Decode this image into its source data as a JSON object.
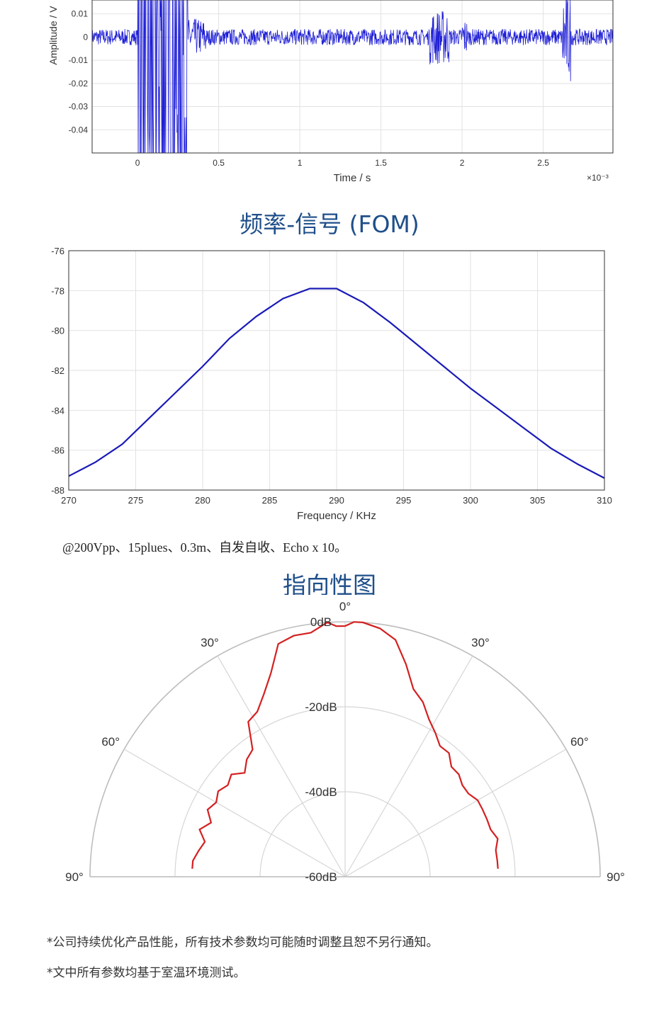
{
  "time_chart": {
    "ylabel": "Amplitude / V",
    "xlabel": "Time / s",
    "x_multiplier": "×10⁻³",
    "y_ticks": [
      "0.01",
      "0",
      "-0.01",
      "-0.02",
      "-0.03",
      "-0.04"
    ],
    "x_ticks": [
      "0",
      "0.5",
      "1",
      "1.5",
      "2",
      "2.5"
    ],
    "line_color": "#1f1fd6"
  },
  "fom_chart_title": "频率-信号 (FOM)",
  "directivity_title": "指向性图",
  "condition_text": "@200Vpp、15plues、0.3m、自发自收、Echo x 10。",
  "notes": [
    "*公司持续优化产品性能，所有技术参数均可能随时调整且恕不另行通知。",
    "*文中所有参数均基于室温环境测试。"
  ],
  "chart_data": [
    {
      "type": "line",
      "xlabel": "Time / s",
      "ylabel": "Amplitude / V",
      "x_scale_note": "×10⁻³",
      "xlim": [
        -0.28,
        2.93
      ],
      "ylim": [
        -0.05,
        0.016
      ],
      "x_ticks": [
        0,
        0.5,
        1,
        1.5,
        2,
        2.5
      ],
      "y_ticks": [
        0.01,
        0,
        -0.01,
        -0.02,
        -0.03,
        -0.04
      ],
      "series": [
        {
          "description_points": [
            {
              "x": -0.28,
              "y": 0.0
            },
            {
              "x": 0.0,
              "y": 0.0
            },
            {
              "x": 0.01,
              "y": -0.05
            },
            {
              "x": 0.3,
              "y": 0.016
            },
            {
              "x": 0.35,
              "y": 0.003
            },
            {
              "x": 1.85,
              "y": 0.013
            },
            {
              "x": 1.87,
              "y": -0.013
            },
            {
              "x": 2.64,
              "y": 0.015
            },
            {
              "x": 2.64,
              "y": -0.022
            },
            {
              "x": 2.93,
              "y": 0.0
            }
          ]
        }
      ],
      "grid": true
    },
    {
      "type": "line",
      "title": "频率-信号 (FOM)",
      "xlabel": "Frequency / KHz",
      "ylabel": "",
      "xlim": [
        270,
        310
      ],
      "ylim": [
        -88,
        -76
      ],
      "x_ticks": [
        270,
        275,
        280,
        285,
        290,
        295,
        300,
        305,
        310
      ],
      "y_ticks": [
        -76,
        -78,
        -80,
        -82,
        -84,
        -86,
        -88
      ],
      "series": [
        {
          "x": [
            270,
            272,
            274,
            276,
            278,
            280,
            282,
            284,
            286,
            288,
            290,
            292,
            294,
            296,
            298,
            300,
            302,
            304,
            306,
            308,
            310
          ],
          "y": [
            -87.3,
            -86.6,
            -85.7,
            -84.4,
            -83.1,
            -81.8,
            -80.4,
            -79.3,
            -78.4,
            -77.9,
            -77.9,
            -78.6,
            -79.6,
            -80.7,
            -81.8,
            -82.9,
            -83.9,
            -84.9,
            -85.9,
            -86.7,
            -87.4
          ],
          "color": "#1a1ab8"
        }
      ],
      "grid": true
    },
    {
      "type": "polar",
      "title": "指向性图",
      "theta_range_deg": [
        -90,
        90
      ],
      "r_range_db": [
        -60,
        0
      ],
      "angle_labels": [
        "90°",
        "60°",
        "30°",
        "0°",
        "30°",
        "60°",
        "90°"
      ],
      "radius_labels": [
        "0dB",
        "-20dB",
        "-40dB",
        "-60dB"
      ],
      "series": [
        {
          "color": "#d42020",
          "theta_deg": [
            -87,
            -84,
            -80,
            -76,
            -72,
            -68,
            -64,
            -60,
            -56,
            -52,
            -48,
            -44,
            -40,
            -36,
            -32,
            -28,
            -24,
            -20,
            -16,
            -12,
            -8,
            -4,
            -2,
            0,
            2,
            4,
            8,
            12,
            16,
            20,
            24,
            28,
            32,
            36,
            40,
            44,
            48,
            52,
            56,
            60,
            64,
            68,
            72,
            76,
            80,
            84,
            87
          ],
          "r_db": [
            -24,
            -24,
            -25,
            -26,
            -24,
            -26,
            -24,
            -25,
            -24,
            -25,
            -24,
            -26,
            -24,
            -23,
            -17,
            -16,
            -13,
            -9,
            -3,
            -2,
            -2,
            0,
            -1,
            -1,
            0,
            0,
            -1,
            -3,
            -8,
            -13,
            -15,
            -18,
            -20,
            -22,
            -22,
            -24,
            -24,
            -25,
            -25,
            -24,
            -24,
            -24,
            -24,
            -23,
            -24,
            -24,
            -24
          ]
        }
      ]
    }
  ]
}
